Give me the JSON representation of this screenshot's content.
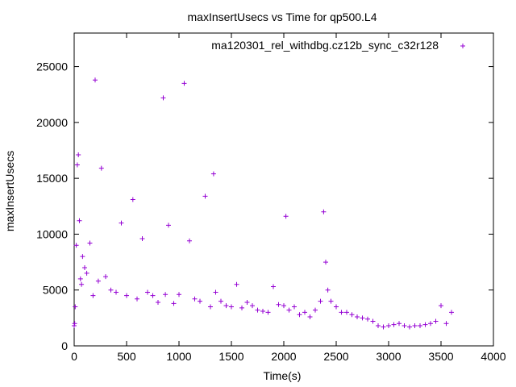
{
  "chart_data": {
    "type": "scatter",
    "title": "maxInsertUsecs vs Time for qp500.L4",
    "xlabel": "Time(s)",
    "ylabel": "maxInsertUsecs",
    "xlim": [
      0,
      4000
    ],
    "ylim": [
      0,
      28000
    ],
    "xticks": [
      0,
      500,
      1000,
      1500,
      2000,
      2500,
      3000,
      3500,
      4000
    ],
    "yticks": [
      0,
      5000,
      10000,
      15000,
      20000,
      25000
    ],
    "grid": false,
    "legend_position": "top-right",
    "series": [
      {
        "name": "ma120301_rel_withdbg.cz12b_sync_c32r128",
        "marker": "+",
        "color": "#9400d3",
        "x": [
          0,
          5,
          10,
          20,
          30,
          40,
          50,
          60,
          70,
          80,
          100,
          120,
          150,
          180,
          200,
          230,
          260,
          300,
          350,
          400,
          450,
          500,
          560,
          600,
          650,
          700,
          750,
          800,
          850,
          870,
          900,
          950,
          1000,
          1050,
          1100,
          1150,
          1200,
          1250,
          1300,
          1330,
          1350,
          1400,
          1450,
          1500,
          1550,
          1600,
          1650,
          1700,
          1750,
          1800,
          1850,
          1900,
          1950,
          2000,
          2020,
          2050,
          2100,
          2150,
          2200,
          2250,
          2300,
          2350,
          2380,
          2400,
          2420,
          2450,
          2500,
          2550,
          2600,
          2650,
          2700,
          2750,
          2800,
          2850,
          2900,
          2950,
          3000,
          3050,
          3100,
          3150,
          3200,
          3250,
          3300,
          3350,
          3400,
          3450,
          3500,
          3550,
          3600
        ],
        "y": [
          1800,
          2000,
          3500,
          9000,
          16200,
          17100,
          11200,
          6000,
          5500,
          8000,
          7000,
          6500,
          9200,
          4500,
          23800,
          5800,
          15900,
          6200,
          5000,
          4800,
          11000,
          4500,
          13100,
          4200,
          9600,
          4800,
          4500,
          3900,
          22200,
          4600,
          10800,
          3800,
          4600,
          23500,
          9400,
          4200,
          4000,
          13400,
          3500,
          15400,
          4800,
          4000,
          3600,
          3500,
          5500,
          3400,
          3900,
          3600,
          3200,
          3100,
          3000,
          5300,
          3700,
          3600,
          11600,
          3200,
          3500,
          2800,
          3000,
          2600,
          3200,
          4000,
          12000,
          7500,
          5000,
          4000,
          3500,
          3000,
          3000,
          2800,
          2600,
          2500,
          2400,
          2200,
          1800,
          1700,
          1800,
          1900,
          2000,
          1800,
          1700,
          1800,
          1800,
          1900,
          2000,
          2200,
          3600,
          2000,
          3000
        ]
      }
    ]
  }
}
